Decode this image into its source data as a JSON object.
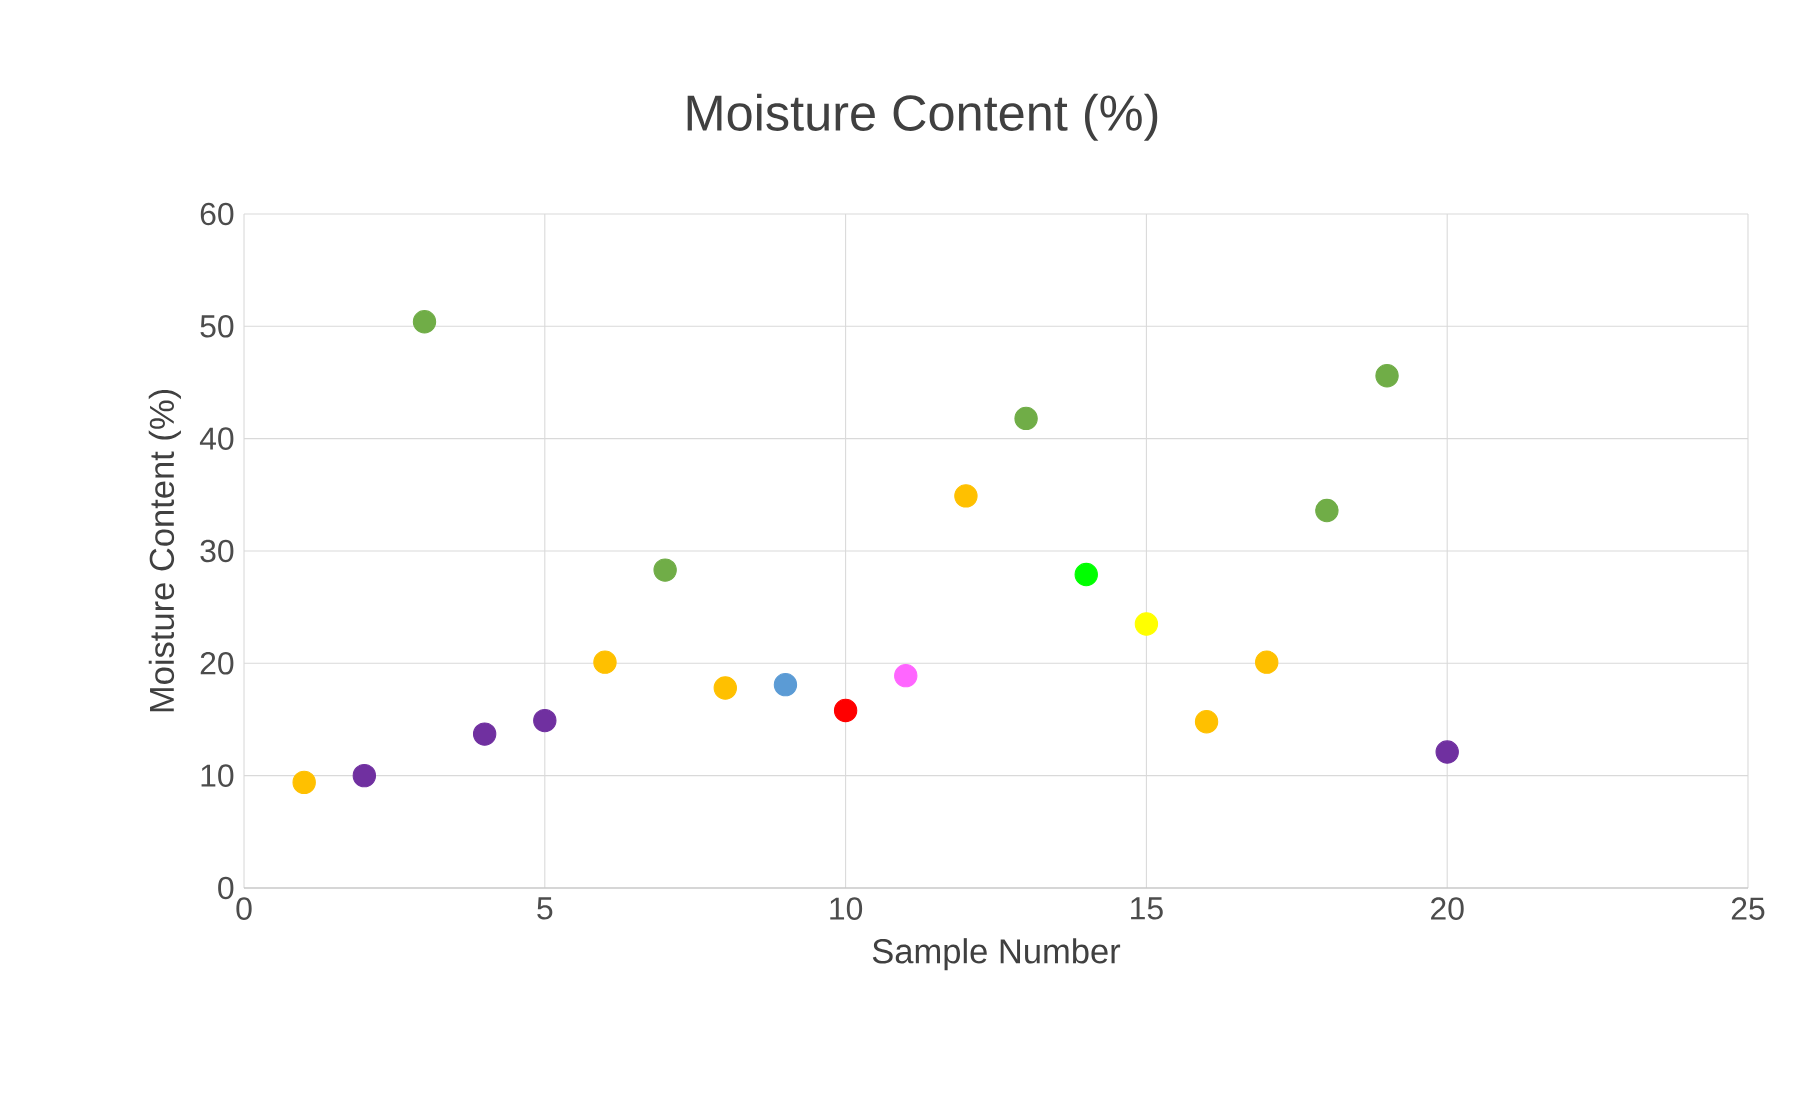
{
  "chart_data": {
    "type": "scatter",
    "title": "Moisture Content (%)",
    "xlabel": "Sample Number",
    "ylabel": "Moisture Content (%)",
    "x": [
      1,
      2,
      3,
      4,
      5,
      6,
      7,
      8,
      9,
      10,
      11,
      12,
      13,
      14,
      15,
      16,
      17,
      18,
      19,
      20
    ],
    "values": [
      9.4,
      10.0,
      50.4,
      13.7,
      14.9,
      20.1,
      28.3,
      17.8,
      18.1,
      15.8,
      18.9,
      34.9,
      41.8,
      27.9,
      23.5,
      14.8,
      20.1,
      33.6,
      45.6,
      12.1
    ],
    "colors": [
      "#ffc000",
      "#7030a0",
      "#70ad47",
      "#7030a0",
      "#7030a0",
      "#ffc000",
      "#70ad47",
      "#ffc000",
      "#5b9bd5",
      "#ff0000",
      "#ff66ff",
      "#ffc000",
      "#70ad47",
      "#00ff00",
      "#ffff00",
      "#ffc000",
      "#ffc000",
      "#70ad47",
      "#70ad47",
      "#7030a0"
    ],
    "xlim": [
      0,
      25
    ],
    "xticks": [
      0,
      5,
      10,
      15,
      20,
      25
    ],
    "ylim": [
      0,
      60
    ],
    "yticks": [
      0,
      10,
      20,
      30,
      40,
      50,
      60
    ],
    "grid": true,
    "marker": "circle"
  }
}
